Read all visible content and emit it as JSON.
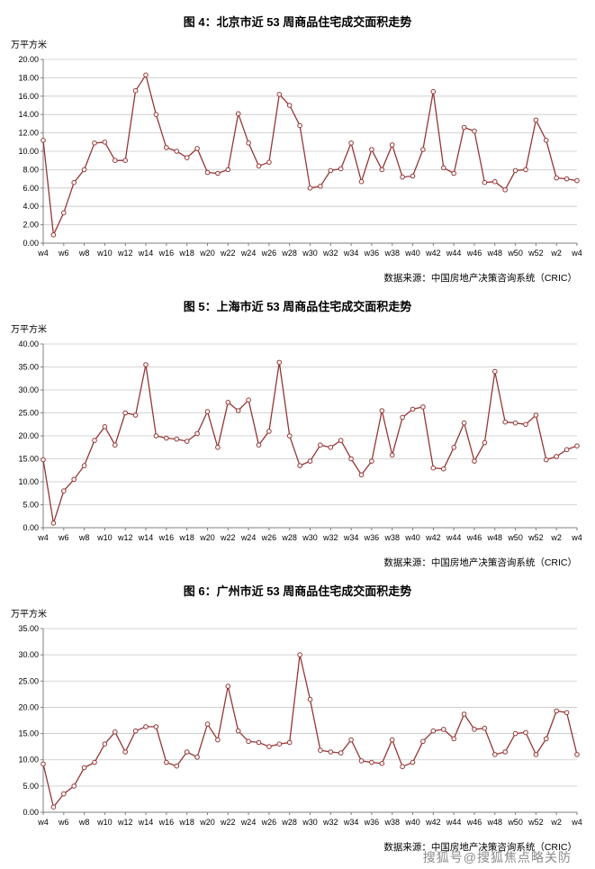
{
  "watermark": "搜狐号@搜狐焦点略关防",
  "chart_data": [
    {
      "type": "line",
      "title": "图 4：北京市近 53 周商品住宅成交面积走势",
      "ylabel_unit": "万平方米",
      "source": "数据来源：中国房地产决策咨询系统（CRIC）",
      "line_color": "#953735",
      "ylim": [
        0,
        20
      ],
      "y_tick_step": 2,
      "x_label_every": 2,
      "legend": "none",
      "grid": "horizontal",
      "categories": [
        "w4",
        "w5",
        "w6",
        "w7",
        "w8",
        "w9",
        "w10",
        "w11",
        "w12",
        "w13",
        "w14",
        "w15",
        "w16",
        "w17",
        "w18",
        "w19",
        "w20",
        "w21",
        "w22",
        "w23",
        "w24",
        "w25",
        "w26",
        "w27",
        "w28",
        "w29",
        "w30",
        "w31",
        "w32",
        "w33",
        "w34",
        "w35",
        "w36",
        "w37",
        "w38",
        "w39",
        "w40",
        "w41",
        "w42",
        "w43",
        "w44",
        "w45",
        "w46",
        "w47",
        "w48",
        "w49",
        "w50",
        "w51",
        "w52",
        "w1",
        "w2",
        "w3",
        "w4"
      ],
      "values": [
        11.2,
        0.9,
        3.3,
        6.6,
        8.0,
        10.9,
        11.0,
        9.0,
        9.0,
        16.6,
        18.3,
        14.0,
        10.4,
        10.0,
        9.3,
        10.3,
        7.7,
        7.6,
        8.0,
        14.1,
        10.9,
        8.4,
        8.8,
        16.2,
        15.0,
        12.8,
        6.0,
        6.2,
        7.9,
        8.1,
        10.9,
        6.7,
        10.2,
        8.0,
        10.7,
        7.2,
        7.3,
        10.2,
        16.5,
        8.2,
        7.6,
        12.6,
        12.2,
        6.6,
        6.7,
        5.8,
        7.9,
        8.0,
        13.4,
        11.2,
        7.1,
        7.0,
        6.8
      ]
    },
    {
      "type": "line",
      "title": "图 5：上海市近 53 周商品住宅成交面积走势",
      "ylabel_unit": "万平方米",
      "source": "数据来源：中国房地产决策咨询系统（CRIC）",
      "line_color": "#953735",
      "ylim": [
        0,
        40
      ],
      "y_tick_step": 5,
      "x_label_every": 2,
      "legend": "none",
      "grid": "horizontal",
      "categories": [
        "w4",
        "w5",
        "w6",
        "w7",
        "w8",
        "w9",
        "w10",
        "w11",
        "w12",
        "w13",
        "w14",
        "w15",
        "w16",
        "w17",
        "w18",
        "w19",
        "w20",
        "w21",
        "w22",
        "w23",
        "w24",
        "w25",
        "w26",
        "w27",
        "w28",
        "w29",
        "w30",
        "w31",
        "w32",
        "w33",
        "w34",
        "w35",
        "w36",
        "w37",
        "w38",
        "w39",
        "w40",
        "w41",
        "w42",
        "w43",
        "w44",
        "w45",
        "w46",
        "w47",
        "w48",
        "w49",
        "w50",
        "w51",
        "w52",
        "w1",
        "w2",
        "w3",
        "w4"
      ],
      "values": [
        14.8,
        1.0,
        8.0,
        10.5,
        13.5,
        19.0,
        22.0,
        18.0,
        25.0,
        24.5,
        35.5,
        20.0,
        19.5,
        19.3,
        18.8,
        20.5,
        25.3,
        17.5,
        27.3,
        25.5,
        27.8,
        18.0,
        21.0,
        36.0,
        20.0,
        13.5,
        14.5,
        18.0,
        17.5,
        19.0,
        15.0,
        11.5,
        14.5,
        25.5,
        15.8,
        24.0,
        25.8,
        26.3,
        13.0,
        12.8,
        17.5,
        22.8,
        14.5,
        18.5,
        34.0,
        23.0,
        22.8,
        22.5,
        24.5,
        14.8,
        15.5,
        17.0,
        17.8
      ]
    },
    {
      "type": "line",
      "title": "图 6：广州市近 53 周商品住宅成交面积走势",
      "ylabel_unit": "万平方米",
      "source": "数据来源：中国房地产决策咨询系统（CRIC）",
      "line_color": "#953735",
      "ylim": [
        0,
        35
      ],
      "y_tick_step": 5,
      "x_label_every": 2,
      "legend": "none",
      "grid": "horizontal",
      "categories": [
        "w4",
        "w5",
        "w6",
        "w7",
        "w8",
        "w9",
        "w10",
        "w11",
        "w12",
        "w13",
        "w14",
        "w15",
        "w16",
        "w17",
        "w18",
        "w19",
        "w20",
        "w21",
        "w22",
        "w23",
        "w24",
        "w25",
        "w26",
        "w27",
        "w28",
        "w29",
        "w30",
        "w31",
        "w32",
        "w33",
        "w34",
        "w35",
        "w36",
        "w37",
        "w38",
        "w39",
        "w40",
        "w41",
        "w42",
        "w43",
        "w44",
        "w45",
        "w46",
        "w47",
        "w48",
        "w49",
        "w50",
        "w51",
        "w52",
        "w1",
        "w2",
        "w3",
        "w4"
      ],
      "values": [
        9.2,
        1.0,
        3.5,
        5.0,
        8.5,
        9.5,
        13.0,
        15.3,
        11.5,
        15.5,
        16.3,
        16.3,
        9.5,
        8.8,
        11.5,
        10.5,
        16.8,
        13.8,
        24.0,
        15.5,
        13.5,
        13.3,
        12.5,
        13.0,
        13.3,
        30.0,
        21.5,
        11.8,
        11.5,
        11.3,
        13.8,
        9.8,
        9.5,
        9.3,
        13.8,
        8.7,
        9.5,
        13.5,
        15.5,
        15.8,
        14.0,
        18.7,
        15.8,
        16.0,
        11.0,
        11.5,
        15.0,
        15.2,
        11.0,
        14.0,
        19.3,
        19.0,
        11.0
      ]
    }
  ]
}
